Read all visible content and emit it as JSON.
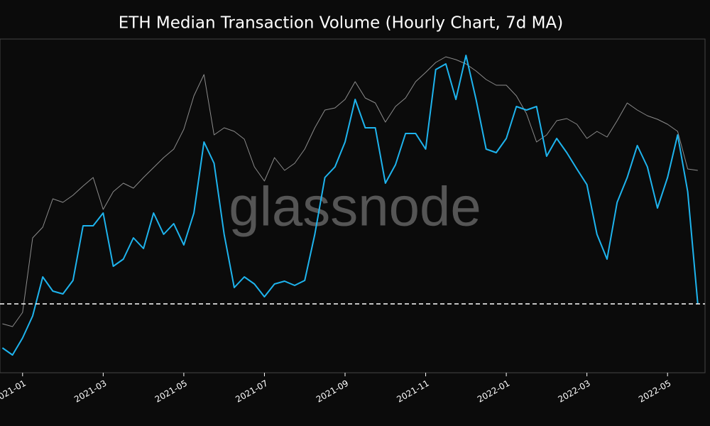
{
  "chart_data": {
    "type": "line",
    "title": "ETH Median Transaction Volume (Hourly Chart, 7d MA)",
    "watermark": "glassnode",
    "x": [
      -0.5,
      -0.25,
      0,
      0.25,
      0.5,
      0.75,
      1,
      1.25,
      1.5,
      1.75,
      2,
      2.25,
      2.5,
      2.75,
      3,
      3.25,
      3.5,
      3.75,
      4,
      4.25,
      4.5,
      4.75,
      5,
      5.25,
      5.5,
      5.75,
      6,
      6.25,
      6.5,
      6.75,
      7,
      7.25,
      7.5,
      7.75,
      8,
      8.25,
      8.5,
      8.75,
      9,
      9.25,
      9.5,
      9.75,
      10,
      10.25,
      10.5,
      10.75,
      11,
      11.25,
      11.5,
      11.75,
      12,
      12.25,
      12.5,
      12.75,
      13,
      13.25,
      13.5,
      13.75,
      14,
      14.25,
      14.5,
      14.75,
      15,
      15.25,
      15.5,
      15.75,
      16,
      16.25,
      16.5,
      16.75
    ],
    "xlim": [
      -0.56,
      16.93
    ],
    "xticks": [
      {
        "value": 0,
        "label": "2021-01"
      },
      {
        "value": 2,
        "label": "2021-03"
      },
      {
        "value": 4,
        "label": "2021-05"
      },
      {
        "value": 6,
        "label": "2021-07"
      },
      {
        "value": 8,
        "label": "2021-09"
      },
      {
        "value": 10,
        "label": "2021-11"
      },
      {
        "value": 12,
        "label": "2022-01"
      },
      {
        "value": 14,
        "label": "2022-03"
      },
      {
        "value": 16,
        "label": "2022-05"
      }
    ],
    "ylim": [
      0,
      470
    ],
    "hline": 97,
    "series": [
      {
        "color": "#8c8c8c",
        "values": [
          69,
          65,
          85,
          190,
          205,
          245,
          240,
          250,
          263,
          275,
          230,
          255,
          267,
          260,
          275,
          289,
          303,
          315,
          343,
          390,
          420,
          335,
          345,
          340,
          329,
          290,
          270,
          303,
          285,
          295,
          315,
          345,
          370,
          373,
          385,
          410,
          387,
          380,
          353,
          375,
          387,
          410,
          423,
          437,
          445,
          441,
          435,
          425,
          413,
          405,
          405,
          390,
          365,
          325,
          335,
          355,
          358,
          350,
          330,
          340,
          332,
          355,
          380,
          370,
          362,
          357,
          350,
          340,
          287,
          285
        ]
      },
      {
        "color": "#1eb4ee",
        "values": [
          35,
          25,
          49,
          80,
          135,
          115,
          111,
          130,
          207,
          207,
          225,
          150,
          160,
          190,
          175,
          225,
          195,
          210,
          180,
          225,
          325,
          295,
          195,
          120,
          135,
          125,
          107,
          125,
          129,
          123,
          130,
          195,
          275,
          290,
          325,
          385,
          345,
          345,
          267,
          293,
          337,
          337,
          315,
          427,
          435,
          385,
          447,
          385,
          315,
          310,
          330,
          375,
          370,
          375,
          305,
          330,
          310,
          287,
          265,
          195,
          160,
          240,
          275,
          320,
          290,
          232,
          275,
          335,
          255,
          97
        ]
      }
    ]
  }
}
